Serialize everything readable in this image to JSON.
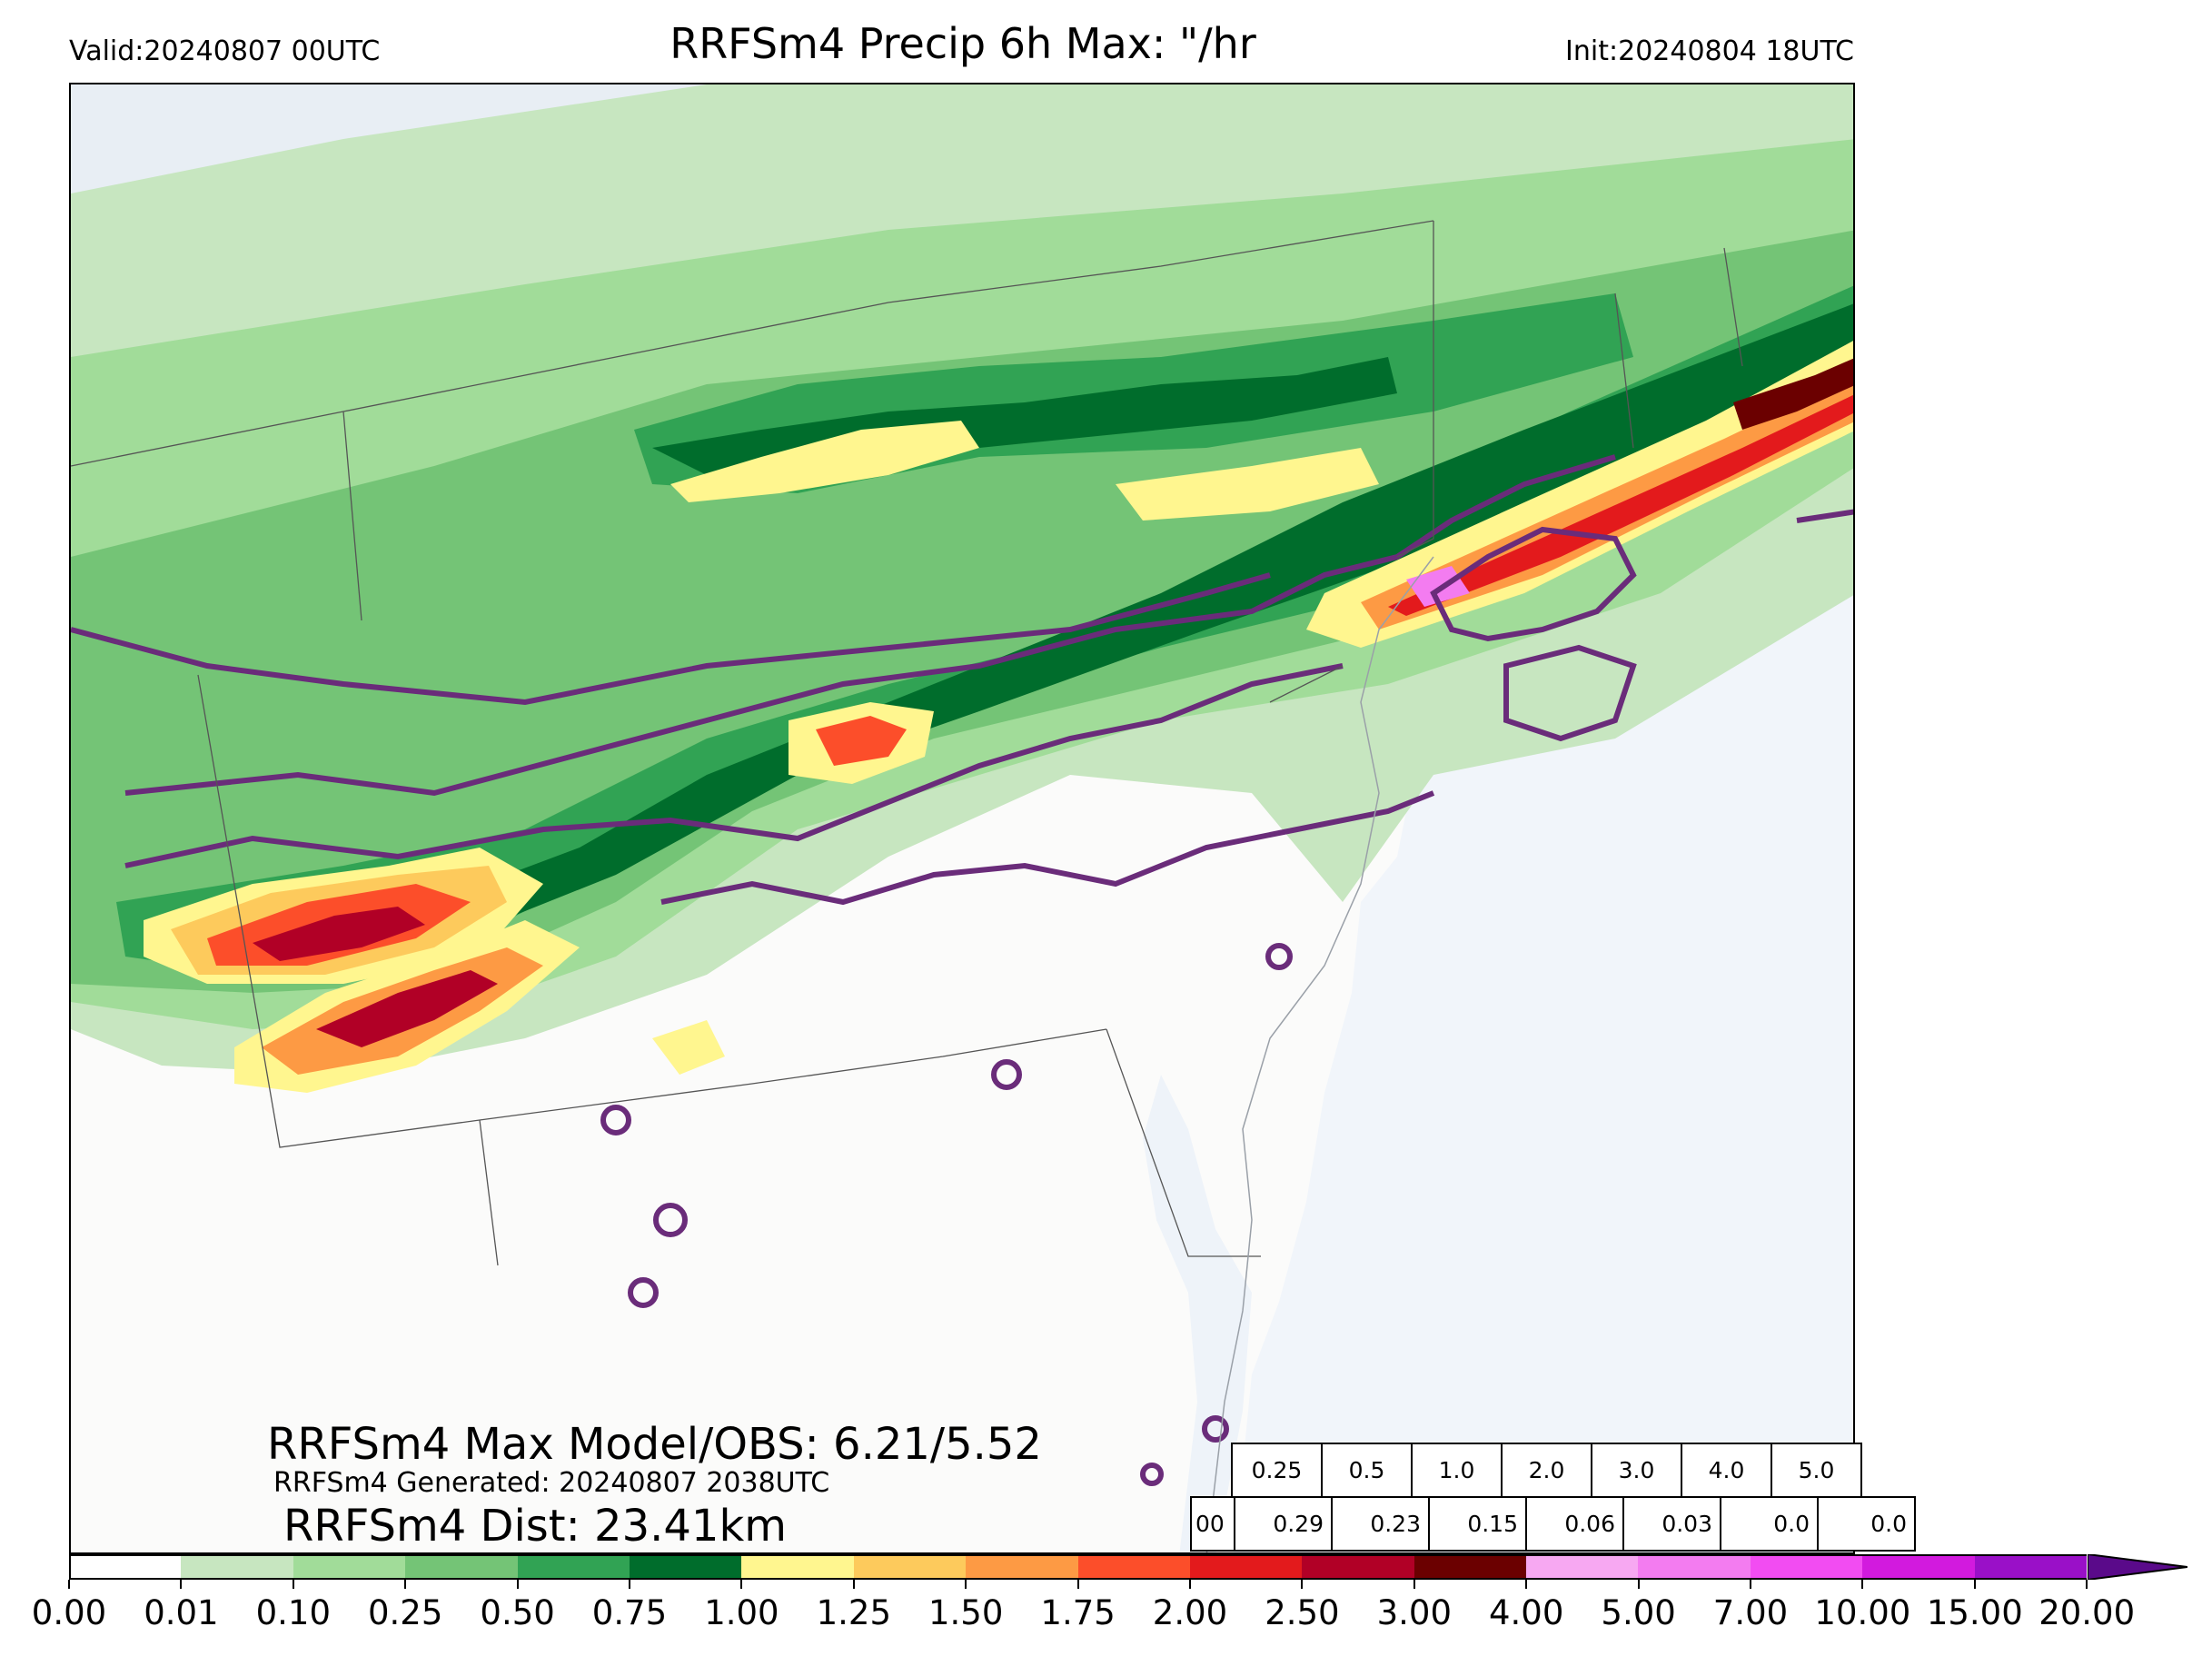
{
  "header": {
    "title": "RRFSm4 Precip 6h Max: \"/hr",
    "valid": "Valid:20240807 00UTC",
    "init": "Init:20240804 18UTC"
  },
  "stats": {
    "max_model_obs": "RRFSm4 Max Model/OBS: 6.21/5.52",
    "generated": "RRFSm4 Generated: 20240807 2038UTC",
    "dist": "RRFSm4 Dist: 23.41km"
  },
  "threshold_table": {
    "headers": [
      "0.25",
      "0.5",
      "1.0",
      "2.0",
      "3.0",
      "4.0",
      "5.0"
    ],
    "row_label": "00",
    "values": [
      "0.29",
      "0.23",
      "0.15",
      "0.06",
      "0.03",
      "0.0",
      "0.0"
    ]
  },
  "colorbar": {
    "ticks": [
      "0.00",
      "0.01",
      "0.10",
      "0.25",
      "0.50",
      "0.75",
      "1.00",
      "1.25",
      "1.50",
      "1.75",
      "2.00",
      "2.50",
      "3.00",
      "4.00",
      "5.00",
      "7.00",
      "10.00",
      "15.00",
      "20.00"
    ],
    "colors": [
      "#ffffff",
      "#c7e6c0",
      "#a1dc99",
      "#74c476",
      "#31a354",
      "#006d2c",
      "#fff68f",
      "#fdca5c",
      "#fd9a44",
      "#fc4e2a",
      "#e31a1c",
      "#b10026",
      "#6b0000",
      "#f7a8f2",
      "#f37cf0",
      "#f24cf2",
      "#d21ade",
      "#9a10c8"
    ],
    "arrow_color": "#5a0a8a"
  },
  "map": {
    "ocean_color": "#f1f5fa",
    "land_color": "#fbfbfa",
    "obs_contour_color": "#6a2c7a"
  }
}
